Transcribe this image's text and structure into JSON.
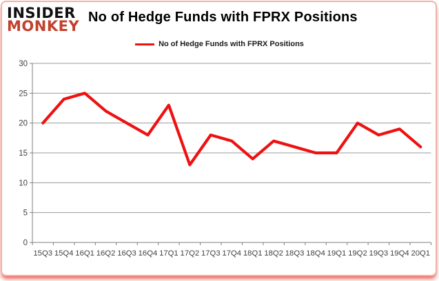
{
  "header": {
    "logo_line1": "INSIDER",
    "logo_line2": "MONKEY",
    "logo_color": "#c2402c",
    "title": "No of Hedge Funds with FPRX Positions"
  },
  "legend": {
    "label": "No of Hedge Funds with FPRX Positions",
    "line_color": "#ee1111"
  },
  "chart_data": {
    "type": "line",
    "title": "No of Hedge Funds with FPRX Positions",
    "categories": [
      "15Q3",
      "15Q4",
      "16Q1",
      "16Q2",
      "16Q3",
      "16Q4",
      "17Q1",
      "17Q2",
      "17Q3",
      "17Q4",
      "18Q1",
      "18Q2",
      "18Q3",
      "18Q4",
      "19Q1",
      "19Q2",
      "19Q3",
      "19Q4",
      "20Q1"
    ],
    "series": [
      {
        "name": "No of Hedge Funds with FPRX Positions",
        "values": [
          20,
          24,
          25,
          22,
          20,
          18,
          23,
          13,
          18,
          17,
          14,
          17,
          16,
          15,
          15,
          20,
          18,
          19,
          16
        ],
        "color": "#ee1111"
      }
    ],
    "xlabel": "",
    "ylabel": "",
    "ylim": [
      0,
      30
    ],
    "yticks": [
      0,
      5,
      10,
      15,
      20,
      25,
      30
    ],
    "grid": true,
    "gridline_color": "#9a9a9a",
    "axis_color": "#7f7f7f",
    "tick_label_color": "#3f3f3f",
    "legend_position": "top"
  }
}
